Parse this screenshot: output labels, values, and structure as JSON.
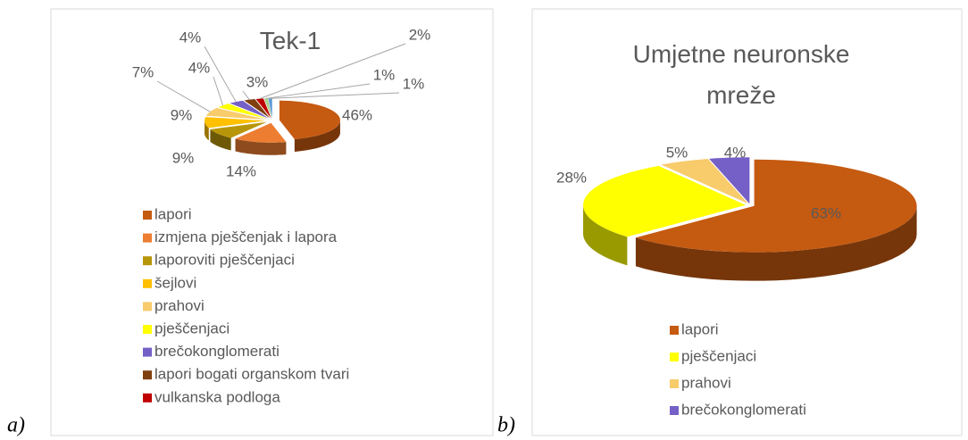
{
  "chart_data": [
    {
      "type": "pie3d",
      "panel_label": "a)",
      "title": "Tek-1",
      "categories": [
        "lapori",
        "izmjena pješčenjak i lapora",
        "laporoviti pješčenjaci",
        "šejlovi",
        "prahovi",
        "pješčenjaci",
        "brečokonglomerati",
        "lapori bogati organskom tvari",
        "vulkanska podloga",
        null,
        null
      ],
      "values": [
        46,
        14,
        9,
        9,
        7,
        4,
        4,
        3,
        2,
        1,
        1
      ],
      "value_labels": [
        "46%",
        "14%",
        "9%",
        "9%",
        "7%",
        "4%",
        "4%",
        "3%",
        "2%",
        "1%",
        "1%"
      ],
      "colors": [
        "#c55a11",
        "#ed7d31",
        "#b8960a",
        "#ffc000",
        "#f8cb6b",
        "#ffff00",
        "#7460c6",
        "#7f3f0f",
        "#c00000",
        "#a9d18e",
        "#5b9bd5"
      ]
    },
    {
      "type": "pie3d",
      "panel_label": "b)",
      "title": "Umjetne neuronske mreže",
      "categories": [
        "lapori",
        "pješčenjaci",
        "prahovi",
        "brečokonglomerati"
      ],
      "values": [
        63,
        28,
        5,
        4
      ],
      "value_labels": [
        "63%",
        "28%",
        "5%",
        "4%"
      ],
      "colors": [
        "#c55a11",
        "#ffff00",
        "#f8cb6b",
        "#7460c6"
      ]
    }
  ]
}
